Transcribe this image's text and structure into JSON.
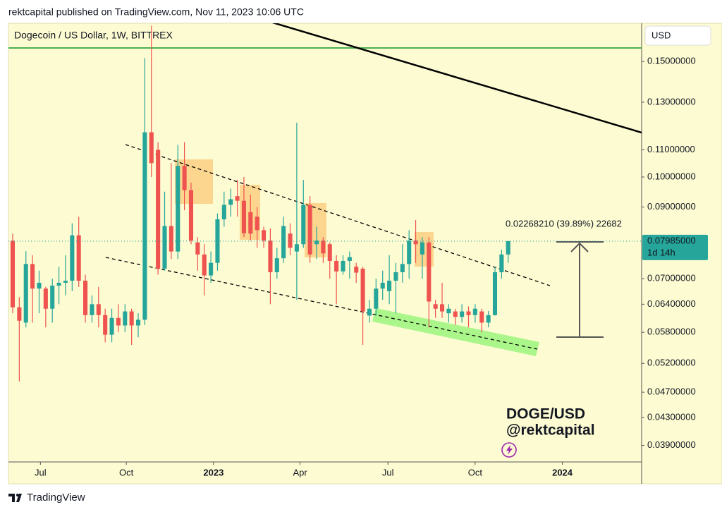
{
  "header": {
    "published": "rektcapital published on TradingView.com, Nov 11, 2023 10:06 UTC"
  },
  "chart_data": {
    "type": "candlestick",
    "title": "Dogecoin / US Dollar, 1W, BITTREX",
    "currency": "USD",
    "log_scale": true,
    "grid": false,
    "up_color": "#26a69a",
    "down_color": "#ef5350",
    "categories": [
      null,
      null,
      null,
      null,
      null,
      null,
      null,
      null,
      null,
      null,
      null,
      null,
      null,
      null,
      null,
      null,
      null,
      null,
      null,
      null,
      null,
      null,
      null,
      null,
      null,
      null,
      null,
      null,
      null,
      null,
      null,
      null,
      null,
      null,
      null,
      null,
      null,
      null,
      null,
      null,
      null,
      null,
      null,
      null,
      null,
      null,
      null,
      null,
      null,
      null,
      null,
      null,
      null,
      null,
      null,
      null,
      null,
      null,
      null,
      null,
      null,
      null,
      null,
      null,
      null,
      null,
      null,
      null,
      null,
      null,
      null,
      null,
      null,
      null,
      null,
      null
    ],
    "open": [
      0.08,
      0.0633,
      0.06,
      0.0737,
      0.0676,
      0.0676,
      0.063,
      0.0683,
      0.069,
      0.0695,
      0.0815,
      0.0695,
      0.0616,
      0.064,
      0.0616,
      0.0575,
      0.061,
      0.0594,
      0.0624,
      0.0594,
      0.0606,
      0.117,
      0.11,
      0.0725,
      0.0842,
      0.077,
      0.104,
      0.0955,
      0.0795,
      0.0762,
      0.0708,
      0.074,
      0.0862,
      0.0907,
      0.0935,
      0.092,
      0.0884,
      0.087,
      0.083,
      0.08,
      0.0716,
      0.0752,
      0.082,
      0.077,
      0.079,
      0.0907,
      0.079,
      0.08,
      0.079,
      0.0745,
      0.0718,
      0.0745,
      0.073,
      0.0725,
      0.0615,
      0.063,
      0.0676,
      0.067,
      0.0695,
      0.0716,
      0.0737,
      0.08,
      0.0762,
      0.0795,
      0.064,
      0.064,
      0.062,
      0.0624,
      0.0612,
      0.0624,
      0.0616,
      0.0624,
      0.06,
      0.0616,
      0.0716,
      0.0762
    ],
    "high": [
      0.082,
      0.0656,
      0.0771,
      0.076,
      0.072,
      0.068,
      0.07,
      0.073,
      0.076,
      0.085,
      0.087,
      0.071,
      0.066,
      0.068,
      0.063,
      0.063,
      0.064,
      0.064,
      0.063,
      0.062,
      0.1518,
      0.17,
      0.113,
      0.095,
      0.105,
      0.112,
      0.113,
      0.098,
      0.081,
      0.079,
      0.077,
      0.088,
      0.095,
      0.096,
      0.099,
      0.1,
      0.094,
      0.09,
      0.084,
      0.0835,
      0.078,
      0.087,
      0.085,
      0.121,
      0.099,
      0.0935,
      0.084,
      0.081,
      0.0795,
      0.076,
      0.076,
      0.077,
      0.074,
      0.073,
      0.065,
      0.07,
      0.072,
      0.076,
      0.074,
      0.079,
      0.083,
      0.086,
      0.081,
      0.081,
      0.065,
      0.069,
      0.064,
      0.063,
      0.064,
      0.0635,
      0.064,
      0.063,
      0.0625,
      0.073,
      0.0775,
      0.08
    ],
    "low": [
      0.062,
      0.0488,
      0.059,
      0.06,
      0.062,
      0.059,
      0.06,
      0.064,
      0.066,
      0.067,
      0.068,
      0.06,
      0.06,
      0.059,
      0.056,
      0.056,
      0.058,
      0.058,
      0.0555,
      0.057,
      0.0595,
      0.1,
      0.071,
      0.072,
      0.075,
      0.075,
      0.089,
      0.079,
      0.072,
      0.066,
      0.069,
      0.072,
      0.084,
      0.087,
      0.087,
      0.081,
      0.08,
      0.078,
      0.078,
      0.064,
      0.07,
      0.074,
      0.076,
      0.065,
      0.078,
      0.074,
      0.075,
      0.074,
      0.07,
      0.064,
      0.071,
      0.07,
      0.069,
      0.0555,
      0.06,
      0.0615,
      0.065,
      0.064,
      0.062,
      0.069,
      0.07,
      0.074,
      0.07,
      0.059,
      0.061,
      0.061,
      0.06,
      0.0595,
      0.06,
      0.059,
      0.06,
      0.058,
      0.059,
      0.0615,
      0.07,
      0.074
    ],
    "close": [
      0.0633,
      0.0604,
      0.0737,
      0.0676,
      0.069,
      0.063,
      0.0683,
      0.069,
      0.0695,
      0.0815,
      0.0695,
      0.0616,
      0.064,
      0.0616,
      0.0575,
      0.061,
      0.0594,
      0.0624,
      0.0594,
      0.0606,
      0.117,
      0.105,
      0.0725,
      0.0842,
      0.077,
      0.104,
      0.0955,
      0.08,
      0.0762,
      0.0708,
      0.074,
      0.0862,
      0.0907,
      0.0925,
      0.092,
      0.0821,
      0.082,
      0.083,
      0.08,
      0.0716,
      0.0752,
      0.0842,
      0.078,
      0.079,
      0.0907,
      0.0762,
      0.08,
      0.0765,
      0.0745,
      0.0718,
      0.0745,
      0.0755,
      0.0715,
      0.0624,
      0.063,
      0.0676,
      0.069,
      0.0695,
      0.0716,
      0.0737,
      0.08,
      0.079,
      0.0795,
      0.0646,
      0.063,
      0.0624,
      0.063,
      0.0612,
      0.0624,
      0.0616,
      0.063,
      0.06,
      0.0616,
      0.0716,
      0.0762,
      0.07985
    ],
    "xlim": [
      -0.64,
      95.2
    ],
    "xticks": [
      {
        "value": 4.2,
        "label": "Jul"
      },
      {
        "value": 17.2,
        "label": "Oct"
      },
      {
        "value": 30.4,
        "label": "2023"
      },
      {
        "value": 43.5,
        "label": "Apr"
      },
      {
        "value": 56.8,
        "label": "Jul"
      },
      {
        "value": 70,
        "label": "Oct"
      },
      {
        "value": 83.2,
        "label": "2024"
      }
    ],
    "ylim": [
      0.0368,
      0.1715
    ],
    "yticks": [
      {
        "value": 0.15,
        "label": "0.15000000"
      },
      {
        "value": 0.13,
        "label": "0.13000000"
      },
      {
        "value": 0.11,
        "label": "0.11000000"
      },
      {
        "value": 0.1,
        "label": "0.10000000"
      },
      {
        "value": 0.09,
        "label": "0.09000000"
      },
      {
        "value": 0.07,
        "label": "0.07000000"
      },
      {
        "value": 0.064,
        "label": "0.06400000"
      },
      {
        "value": 0.058,
        "label": "0.05800000"
      },
      {
        "value": 0.052,
        "label": "0.05200000"
      },
      {
        "value": 0.047,
        "label": "0.04700000"
      },
      {
        "value": 0.043,
        "label": "0.04300000"
      },
      {
        "value": 0.039,
        "label": "0.03900000"
      }
    ],
    "last_price": {
      "value": 0.07985,
      "label": "0.07985000"
    },
    "countdown": "1d 14h",
    "measure_label": "0.02268210 (39.89%) 22682",
    "watermark": [
      "DOGE/USD",
      "@rektcapital"
    ]
  },
  "footer": {
    "brand": "TradingView"
  }
}
